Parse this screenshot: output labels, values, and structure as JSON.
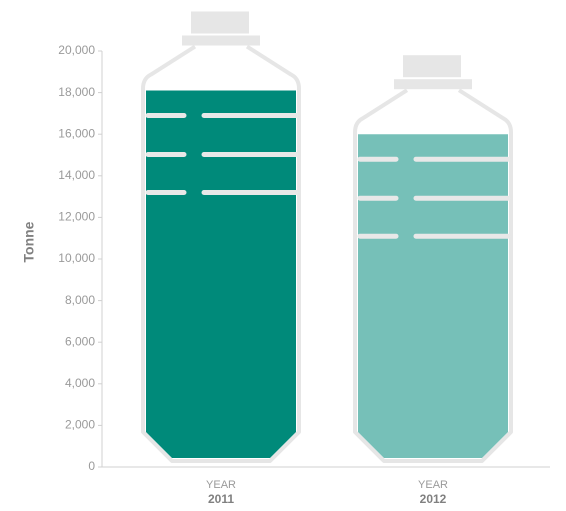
{
  "chart_data": {
    "type": "bottle-bar",
    "y_label": "Tonne",
    "category_prefix": "YEAR",
    "categories": [
      "2011",
      "2012"
    ],
    "values": [
      18100,
      16000
    ],
    "colors": [
      "#008a7a",
      "#76c0b8"
    ],
    "ylim": [
      0,
      20000
    ],
    "yticks": [
      0,
      {
        "value": 2000,
        "label": "2,000"
      },
      {
        "value": 4000,
        "label": "4,000"
      },
      {
        "value": 6000,
        "label": "6,000"
      },
      {
        "value": 8000,
        "label": "8,000"
      },
      {
        "value": 10000,
        "label": "10,000"
      },
      {
        "value": 12000,
        "label": "12,000"
      },
      {
        "value": 14000,
        "label": "14,000"
      },
      {
        "value": 16000,
        "label": "16,000"
      },
      {
        "value": 18000,
        "label": "18,000"
      },
      {
        "value": 20000,
        "label": "20,000"
      }
    ]
  }
}
